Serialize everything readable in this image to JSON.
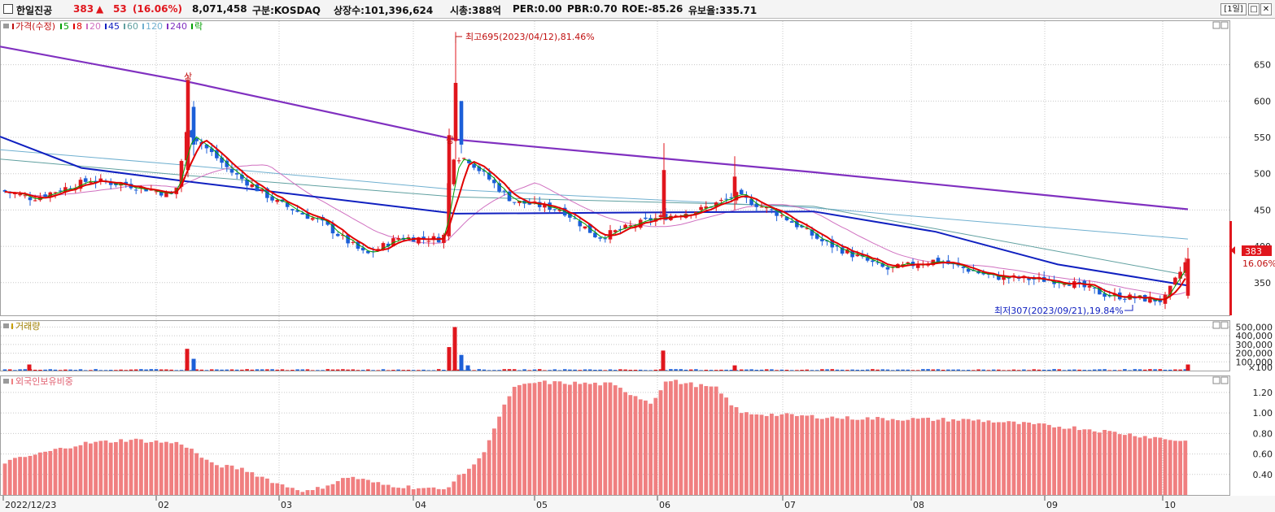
{
  "header": {
    "stock_name": "한일진공",
    "price": "383",
    "change_arrow": "▲",
    "change": "53",
    "change_pct": "(16.06%)",
    "volume": "8,071,458",
    "market": "구분:KOSDAQ",
    "listed_shares": "상장수:101,396,624",
    "market_cap": "시총:388억",
    "per": "PER:0.00",
    "pbr": "PBR:0.70",
    "roe": "ROE:-85.26",
    "retention": "유보율:335.71",
    "period_button": "[1일]"
  },
  "legend": {
    "price_label": "가격(수정)",
    "ma_items": [
      {
        "label": "5",
        "color": "#00a000"
      },
      {
        "label": "8",
        "color": "#e00000"
      },
      {
        "label": "20",
        "color": "#d070c0"
      },
      {
        "label": "45",
        "color": "#1020c0"
      },
      {
        "label": "60",
        "color": "#60a0a0"
      },
      {
        "label": "120",
        "color": "#70b0d0"
      },
      {
        "label": "240",
        "color": "#8030c0"
      }
    ],
    "fall_label": "락",
    "volume_label": "거래량",
    "foreign_label": "외국인보유비중"
  },
  "colors": {
    "up": "#e0161d",
    "down": "#1c5fd8",
    "foreign_bar": "#f07f80",
    "grid": "#c8c8c8"
  },
  "annotations": {
    "high": "최고695(2023/04/12),81.46%",
    "low": "최저307(2023/09/21),19.84%",
    "limit_up": "상",
    "last_price": "383",
    "last_pct": "16.06%"
  },
  "chart_data": [
    {
      "type": "candlestick",
      "title": "가격(수정)",
      "y_ticks": [
        350,
        400,
        450,
        500,
        550,
        600,
        650
      ],
      "ylim": [
        305,
        710
      ],
      "x_labels": [
        "2022/12/23",
        "02",
        "03",
        "04",
        "05",
        "06",
        "07",
        "08",
        "09",
        "10"
      ],
      "ma240": [
        [
          0,
          675
        ],
        [
          225,
          628
        ],
        [
          560,
          547
        ],
        [
          1000,
          502
        ],
        [
          1460,
          451
        ]
      ],
      "ma120": [
        [
          0,
          533
        ],
        [
          225,
          512
        ],
        [
          560,
          478
        ],
        [
          1000,
          453
        ],
        [
          1460,
          410
        ]
      ],
      "ma60": [
        [
          0,
          520
        ],
        [
          225,
          498
        ],
        [
          560,
          468
        ],
        [
          1000,
          455
        ],
        [
          1460,
          360
        ]
      ],
      "ma45": [
        [
          0,
          551
        ],
        [
          100,
          508
        ],
        [
          225,
          490
        ],
        [
          560,
          445
        ],
        [
          1000,
          448
        ],
        [
          1150,
          420
        ],
        [
          1300,
          375
        ],
        [
          1460,
          346
        ]
      ],
      "price_path": [
        [
          0,
          477
        ],
        [
          40,
          466
        ],
        [
          110,
          491
        ],
        [
          160,
          484
        ],
        [
          215,
          470
        ],
        [
          230,
          560
        ],
        [
          285,
          502
        ],
        [
          340,
          461
        ],
        [
          395,
          433
        ],
        [
          450,
          388
        ],
        [
          490,
          412
        ],
        [
          545,
          410
        ],
        [
          555,
          525
        ],
        [
          575,
          520
        ],
        [
          630,
          462
        ],
        [
          690,
          451
        ],
        [
          735,
          412
        ],
        [
          800,
          437
        ],
        [
          860,
          450
        ],
        [
          905,
          470
        ],
        [
          960,
          443
        ],
        [
          1010,
          407
        ],
        [
          1090,
          368
        ],
        [
          1150,
          381
        ],
        [
          1220,
          358
        ],
        [
          1310,
          352
        ],
        [
          1360,
          333
        ],
        [
          1430,
          325
        ],
        [
          1460,
          383
        ]
      ]
    },
    {
      "type": "bar",
      "title": "거래량",
      "y_ticks": [
        100000,
        200000,
        300000,
        400000,
        500000
      ],
      "y_tick_labels": [
        "100,000",
        "200,000",
        "300,000",
        "400,000",
        "500,000"
      ],
      "ylim": [
        0,
        560000
      ],
      "unit": "×100",
      "spikes": [
        [
          36,
          70000,
          "up"
        ],
        [
          230,
          250000,
          "up"
        ],
        [
          238,
          135000,
          "down"
        ],
        [
          552,
          270000,
          "up"
        ],
        [
          559,
          500000,
          "up"
        ],
        [
          567,
          180000,
          "down"
        ],
        [
          575,
          60000,
          "down"
        ],
        [
          815,
          230000,
          "up"
        ],
        [
          903,
          60000,
          "up"
        ],
        [
          1460,
          70000,
          "up"
        ]
      ]
    },
    {
      "type": "bar",
      "title": "외국인보유비중",
      "y_ticks": [
        0.4,
        0.6,
        0.8,
        1.0,
        1.2
      ],
      "y_tick_labels": [
        "0.40",
        "0.60",
        "0.80",
        "1.00",
        "1.20"
      ],
      "ylim": [
        0.2,
        1.35
      ],
      "profile": [
        [
          0,
          0.51
        ],
        [
          100,
          0.7
        ],
        [
          160,
          0.74
        ],
        [
          225,
          0.7
        ],
        [
          260,
          0.5
        ],
        [
          300,
          0.45
        ],
        [
          345,
          0.3
        ],
        [
          380,
          0.23
        ],
        [
          430,
          0.38
        ],
        [
          470,
          0.3
        ],
        [
          545,
          0.25
        ],
        [
          590,
          0.55
        ],
        [
          630,
          1.24
        ],
        [
          660,
          1.3
        ],
        [
          750,
          1.28
        ],
        [
          800,
          1.1
        ],
        [
          820,
          1.32
        ],
        [
          880,
          1.24
        ],
        [
          910,
          1.0
        ],
        [
          1040,
          0.95
        ],
        [
          1200,
          0.93
        ],
        [
          1330,
          0.85
        ],
        [
          1460,
          0.72
        ]
      ]
    }
  ]
}
